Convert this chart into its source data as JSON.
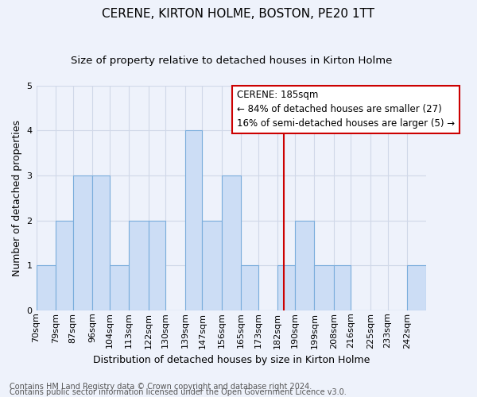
{
  "title": "CERENE, KIRTON HOLME, BOSTON, PE20 1TT",
  "subtitle": "Size of property relative to detached houses in Kirton Holme",
  "xlabel": "Distribution of detached houses by size in Kirton Holme",
  "ylabel": "Number of detached properties",
  "footer1": "Contains HM Land Registry data © Crown copyright and database right 2024.",
  "footer2": "Contains public sector information licensed under the Open Government Licence v3.0.",
  "bin_labels": [
    "70sqm",
    "79sqm",
    "87sqm",
    "96sqm",
    "104sqm",
    "113sqm",
    "122sqm",
    "130sqm",
    "139sqm",
    "147sqm",
    "156sqm",
    "165sqm",
    "173sqm",
    "182sqm",
    "190sqm",
    "199sqm",
    "208sqm",
    "216sqm",
    "225sqm",
    "233sqm",
    "242sqm"
  ],
  "bin_edges": [
    70,
    79,
    87,
    96,
    104,
    113,
    122,
    130,
    139,
    147,
    156,
    165,
    173,
    182,
    190,
    199,
    208,
    216,
    225,
    233,
    242
  ],
  "bar_values": [
    1,
    2,
    3,
    3,
    1,
    2,
    2,
    0,
    4,
    2,
    3,
    1,
    0,
    1,
    2,
    1,
    1,
    0,
    0,
    0,
    1
  ],
  "bar_color": "#ccddf5",
  "bar_edge_color": "#7aaddc",
  "grid_color": "#d0d8e8",
  "vline_x": 185,
  "vline_color": "#cc0000",
  "annotation_line1": "CERENE: 185sqm",
  "annotation_line2": "← 84% of detached houses are smaller (27)",
  "annotation_line3": "16% of semi-detached houses are larger (5) →",
  "annotation_box_color": "#ffffff",
  "annotation_box_edge": "#cc0000",
  "ylim": [
    0,
    5
  ],
  "yticks": [
    0,
    1,
    2,
    3,
    4,
    5
  ],
  "background_color": "#eef2fb",
  "axes_background": "#eef2fb",
  "title_fontsize": 11,
  "subtitle_fontsize": 9.5,
  "axis_label_fontsize": 9,
  "tick_fontsize": 8,
  "annotation_fontsize": 8.5,
  "footer_fontsize": 7
}
